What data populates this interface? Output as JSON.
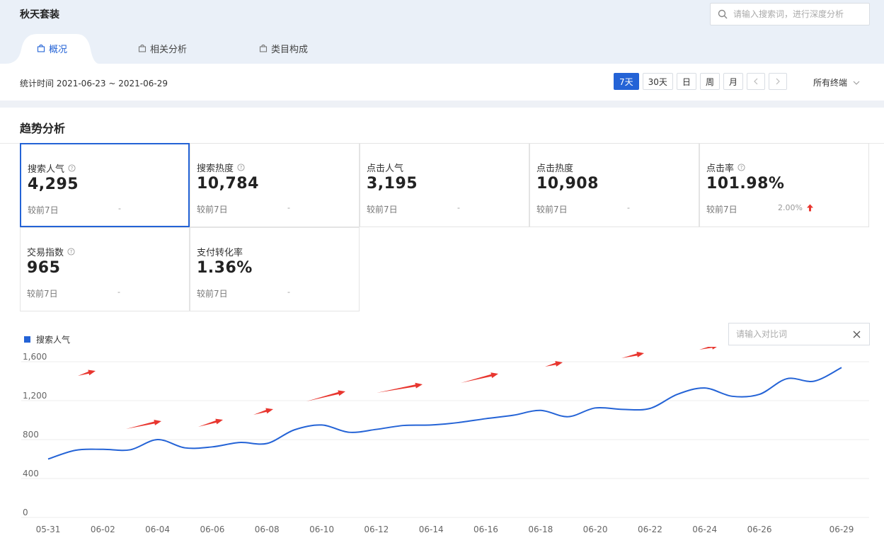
{
  "header": {
    "title": "秋天套装",
    "search_placeholder": "请输入搜索词，进行深度分析",
    "tabs": [
      {
        "label": "概况",
        "active": true
      },
      {
        "label": "相关分析",
        "active": false
      },
      {
        "label": "类目构成",
        "active": false
      }
    ]
  },
  "toolbar": {
    "stat_time": "统计时间 2021-06-23 ~ 2021-06-29",
    "periods": [
      "7天",
      "30天",
      "日",
      "周",
      "月"
    ],
    "active_period": "7天",
    "terminal": "所有终端"
  },
  "section": {
    "title": "趋势分析"
  },
  "metrics": [
    {
      "label": "搜索人气",
      "value": "4,295",
      "compare": "较前7日",
      "change": "-",
      "help": true
    },
    {
      "label": "搜索热度",
      "value": "10,784",
      "compare": "较前7日",
      "change": "-",
      "help": true
    },
    {
      "label": "点击人气",
      "value": "3,195",
      "compare": "较前7日",
      "change": "-",
      "help": false
    },
    {
      "label": "点击热度",
      "value": "10,908",
      "compare": "较前7日",
      "change": "-",
      "help": false
    },
    {
      "label": "点击率",
      "value": "101.98%",
      "compare": "较前7日",
      "change": "2.00%",
      "help": true,
      "trend": "up"
    },
    {
      "label": "交易指数",
      "value": "965",
      "compare": "较前7日",
      "change": "-",
      "help": true
    },
    {
      "label": "支付转化率",
      "value": "1.36%",
      "compare": "较前7日",
      "change": "-",
      "help": false
    }
  ],
  "compare_input": {
    "placeholder": "请输入对比词"
  },
  "colors": {
    "accent": "#2463d6",
    "up": "#e8362f",
    "annotation_arrow": "#e8362f"
  },
  "chart_data": {
    "type": "line",
    "legend": "搜索人气",
    "legend_position": "top-left",
    "y_ticks": [
      "0",
      "400",
      "800",
      "1,200",
      "1,600"
    ],
    "ylim": [
      0,
      1600
    ],
    "x_tick_labels": [
      "05-31",
      "06-02",
      "06-04",
      "06-06",
      "06-08",
      "06-10",
      "06-12",
      "06-14",
      "06-16",
      "06-18",
      "06-20",
      "06-22",
      "06-24",
      "06-26",
      "06-29"
    ],
    "grid": true,
    "x": [
      "05-31",
      "06-01",
      "06-02",
      "06-03",
      "06-04",
      "06-05",
      "06-06",
      "06-07",
      "06-08",
      "06-09",
      "06-10",
      "06-11",
      "06-12",
      "06-13",
      "06-14",
      "06-15",
      "06-16",
      "06-17",
      "06-18",
      "06-19",
      "06-20",
      "06-21",
      "06-22",
      "06-23",
      "06-24",
      "06-25",
      "06-26",
      "06-27",
      "06-28",
      "06-29"
    ],
    "series": [
      {
        "name": "搜索人气",
        "values": [
          600,
          690,
          700,
          695,
          800,
          715,
          725,
          770,
          760,
          900,
          950,
          875,
          905,
          945,
          950,
          975,
          1015,
          1050,
          1100,
          1035,
          1125,
          1110,
          1120,
          1265,
          1330,
          1245,
          1265,
          1425,
          1400,
          1540
        ]
      }
    ]
  }
}
